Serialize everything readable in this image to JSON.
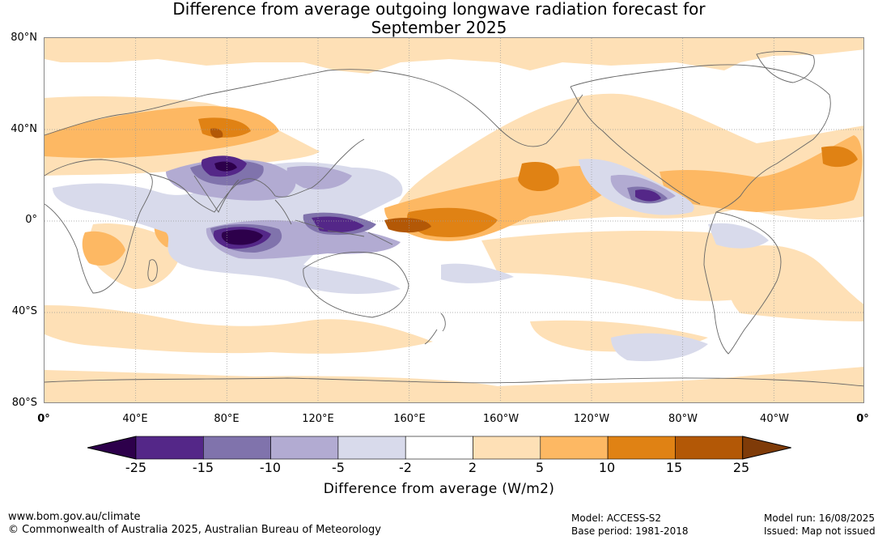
{
  "title": {
    "line1": "Difference from average outgoing longwave radiation forecast for",
    "line2": "September 2025"
  },
  "lat_labels": [
    "80°N",
    "40°N",
    "0°",
    "40°S",
    "80°S"
  ],
  "lon_labels": [
    "0°",
    "40°E",
    "80°E",
    "120°E",
    "160°E",
    "160°W",
    "120°W",
    "80°W",
    "40°W",
    "0°"
  ],
  "colorbar": {
    "ticks": [
      "-25",
      "-15",
      "-10",
      "-5",
      "-2",
      "2",
      "5",
      "10",
      "15",
      "25"
    ],
    "colors": [
      "#2d004b",
      "#542788",
      "#8073ac",
      "#b2abd2",
      "#d8daeb",
      "#ffffff",
      "#fee0b6",
      "#fdb863",
      "#e08214",
      "#b35806",
      "#7f3b08"
    ],
    "title": "Difference from average (W/m2)"
  },
  "footer": {
    "website": "www.bom.gov.au/climate",
    "copyright": "© Commonwealth of Australia 2025, Australian Bureau of Meteorology",
    "model": "Model: ACCESS-S2",
    "base_period": "Base period: 1981-2018",
    "model_run": "Model run: 16/08/2025",
    "issued": "Issued: Map not issued"
  },
  "map": {
    "projection": "equirectangular",
    "lon_range": [
      0,
      360
    ],
    "lat_range": [
      -80,
      80
    ],
    "grid": true
  }
}
